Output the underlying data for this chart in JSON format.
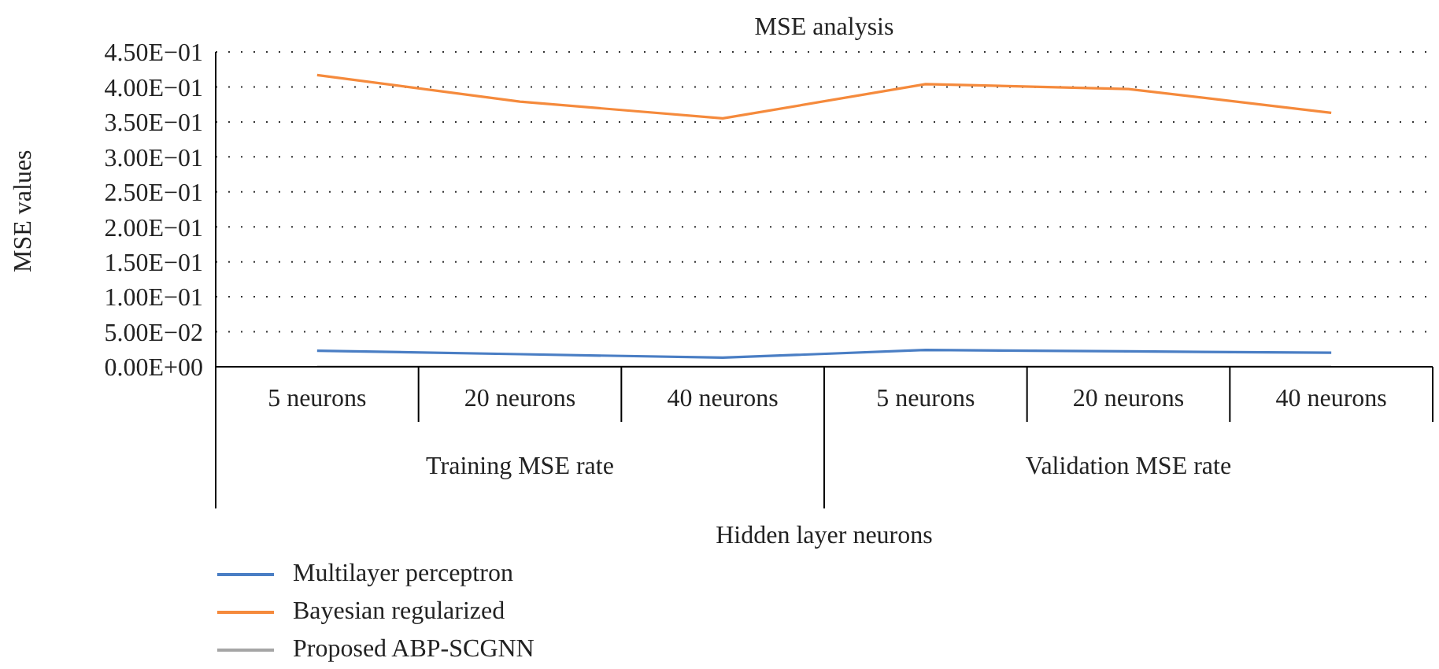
{
  "chart_data": {
    "type": "line",
    "title": "MSE analysis",
    "xlabel": "Hidden layer neurons",
    "ylabel": "MSE values",
    "categories": [
      "5 neurons",
      "20 neurons",
      "40 neurons",
      "5 neurons",
      "20 neurons",
      "40 neurons"
    ],
    "annotations": [
      "Training MSE rate",
      "Validation MSE rate"
    ],
    "series": [
      {
        "name": "Multilayer perceptron",
        "color": "#4a7ec4",
        "values": [
          0.023,
          0.018,
          0.013,
          0.024,
          0.022,
          0.02
        ]
      },
      {
        "name": "Bayesian regularized",
        "color": "#f58a3c",
        "values": [
          0.417,
          0.379,
          0.355,
          0.404,
          0.397,
          0.363
        ]
      },
      {
        "name": "Proposed ABP-SCGNN",
        "color": "#a5a5a5",
        "values": [
          0,
          0,
          0,
          0,
          0,
          0
        ]
      }
    ],
    "ylim": [
      0,
      0.45
    ],
    "yticks": [
      {
        "value": 0,
        "label": "0.00E+00"
      },
      {
        "value": 0.05,
        "label": "5.00E−02"
      },
      {
        "value": 0.1,
        "label": "1.00E−01"
      },
      {
        "value": 0.15,
        "label": "1.50E−01"
      },
      {
        "value": 0.2,
        "label": "2.00E−01"
      },
      {
        "value": 0.25,
        "label": "2.50E−01"
      },
      {
        "value": 0.3,
        "label": "3.00E−01"
      },
      {
        "value": 0.35,
        "label": "3.50E−01"
      },
      {
        "value": 0.4,
        "label": "4.00E−01"
      },
      {
        "value": 0.45,
        "label": "4.50E−01"
      }
    ],
    "grid": "y",
    "legend": "bottom left",
    "marker": "none",
    "line_style": "solid"
  }
}
